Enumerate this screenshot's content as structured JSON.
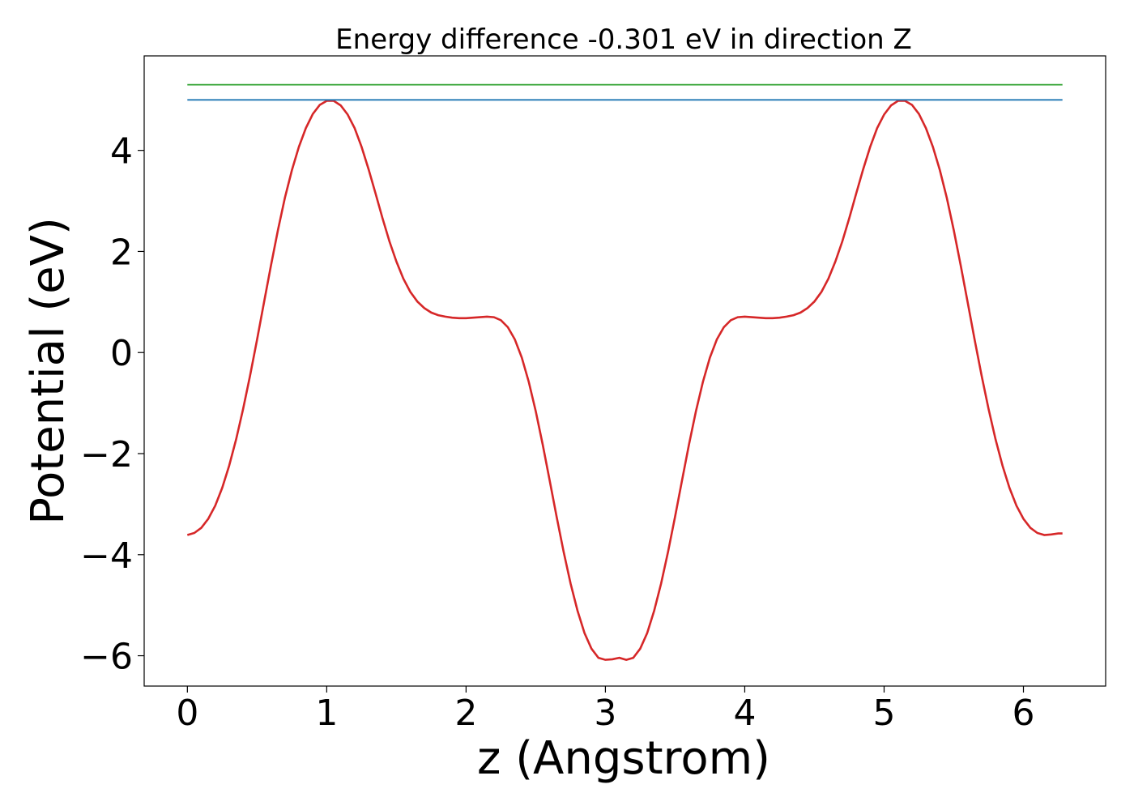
{
  "chart_data": {
    "type": "line",
    "title": "Energy difference -0.301 eV in direction Z",
    "xlabel": "z (Angstrom)",
    "ylabel": "Potential (eV)",
    "xlim": [
      -0.31,
      6.59
    ],
    "ylim": [
      -6.6,
      5.87
    ],
    "xticks": [
      0,
      1,
      2,
      3,
      4,
      5,
      6
    ],
    "xtick_labels": [
      "0",
      "1",
      "2",
      "3",
      "4",
      "5",
      "6"
    ],
    "yticks": [
      4,
      2,
      0,
      -2,
      -4,
      -6
    ],
    "ytick_labels": [
      "4",
      "2",
      "0",
      "−2",
      "−4",
      "−6"
    ],
    "grid": false,
    "series": [
      {
        "color": "#d62728",
        "x": [
          0.0,
          0.05,
          0.1,
          0.15,
          0.2,
          0.25,
          0.3,
          0.35,
          0.4,
          0.45,
          0.5,
          0.55,
          0.6,
          0.65,
          0.7,
          0.75,
          0.8,
          0.85,
          0.9,
          0.95,
          1.0,
          1.05,
          1.1,
          1.15,
          1.2,
          1.25,
          1.3,
          1.35,
          1.4,
          1.45,
          1.5,
          1.55,
          1.6,
          1.65,
          1.7,
          1.75,
          1.8,
          1.85,
          1.9,
          1.95,
          2.0,
          2.05,
          2.1,
          2.15,
          2.2,
          2.25,
          2.3,
          2.35,
          2.4,
          2.45,
          2.5,
          2.55,
          2.6,
          2.65,
          2.7,
          2.75,
          2.8,
          2.85,
          2.9,
          2.95,
          3.0,
          3.05,
          3.1,
          3.15,
          3.2,
          3.25,
          3.3,
          3.35,
          3.4,
          3.45,
          3.5,
          3.55,
          3.6,
          3.65,
          3.7,
          3.75,
          3.8,
          3.85,
          3.9,
          3.95,
          4.0,
          4.05,
          4.1,
          4.15,
          4.2,
          4.25,
          4.3,
          4.35,
          4.4,
          4.45,
          4.5,
          4.55,
          4.6,
          4.65,
          4.7,
          4.75,
          4.8,
          4.85,
          4.9,
          4.95,
          5.0,
          5.05,
          5.1,
          5.15,
          5.2,
          5.25,
          5.3,
          5.35,
          5.4,
          5.45,
          5.5,
          5.55,
          5.6,
          5.65,
          5.7,
          5.75,
          5.8,
          5.85,
          5.9,
          5.95,
          6.0,
          6.05,
          6.1,
          6.15,
          6.2,
          6.25,
          6.28
        ],
        "y": [
          -3.61,
          -3.57,
          -3.47,
          -3.29,
          -3.03,
          -2.68,
          -2.24,
          -1.72,
          -1.12,
          -0.46,
          0.25,
          0.99,
          1.72,
          2.42,
          3.06,
          3.61,
          4.07,
          4.44,
          4.72,
          4.9,
          4.98,
          4.98,
          4.89,
          4.71,
          4.44,
          4.07,
          3.63,
          3.15,
          2.66,
          2.2,
          1.8,
          1.46,
          1.2,
          1.01,
          0.88,
          0.79,
          0.74,
          0.71,
          0.69,
          0.68,
          0.68,
          0.69,
          0.7,
          0.71,
          0.7,
          0.64,
          0.5,
          0.26,
          -0.1,
          -0.58,
          -1.16,
          -1.82,
          -2.53,
          -3.25,
          -3.94,
          -4.57,
          -5.11,
          -5.55,
          -5.86,
          -6.04,
          -6.08,
          -6.07,
          -6.04,
          -6.08,
          -6.04,
          -5.86,
          -5.55,
          -5.11,
          -4.57,
          -3.94,
          -3.25,
          -2.53,
          -1.82,
          -1.16,
          -0.58,
          -0.1,
          0.26,
          0.5,
          0.64,
          0.7,
          0.71,
          0.7,
          0.69,
          0.68,
          0.68,
          0.69,
          0.71,
          0.74,
          0.79,
          0.88,
          1.01,
          1.2,
          1.46,
          1.8,
          2.2,
          2.66,
          3.15,
          3.63,
          4.07,
          4.44,
          4.71,
          4.89,
          4.98,
          4.98,
          4.9,
          4.72,
          4.44,
          4.07,
          3.61,
          3.06,
          2.42,
          1.72,
          0.99,
          0.25,
          -0.46,
          -1.12,
          -1.72,
          -2.24,
          -2.68,
          -3.03,
          -3.29,
          -3.47,
          -3.57,
          -3.61,
          -3.6,
          -3.58,
          -3.58
        ]
      },
      {
        "color": "#1f77b4",
        "x": [
          0.0,
          6.28
        ],
        "y": [
          5.0,
          5.0
        ]
      },
      {
        "color": "#2ca02c",
        "x": [
          0.0,
          6.28
        ],
        "y": [
          5.3,
          5.3
        ]
      }
    ]
  }
}
